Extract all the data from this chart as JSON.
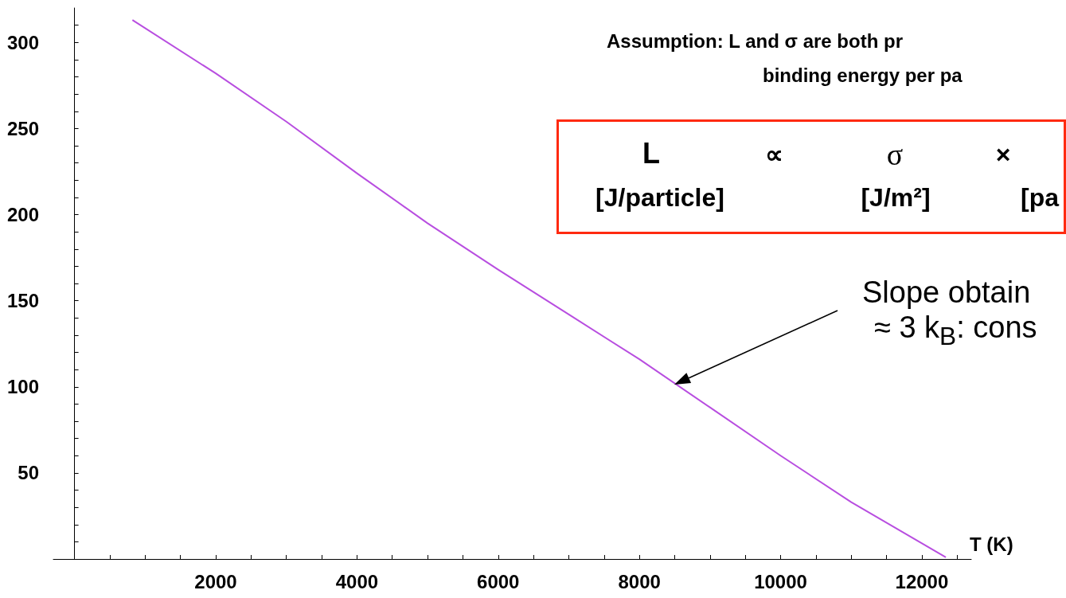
{
  "chart_data": {
    "type": "line",
    "xlabel": "T (K)",
    "x": [
      820,
      2000,
      3000,
      4000,
      5000,
      6000,
      7000,
      8000,
      9000,
      10000,
      11000,
      12340
    ],
    "series": [
      {
        "color": "#b84ee0",
        "values": [
          313,
          282,
          254,
          224,
          195,
          168,
          142,
          116,
          88,
          60,
          33,
          1
        ]
      }
    ],
    "xlim": [
      -300,
      12700
    ],
    "ylim": [
      0,
      320
    ],
    "xticks": [
      {
        "value": 0,
        "label": null
      },
      {
        "value": 500,
        "label": null
      },
      {
        "value": 1000,
        "label": null
      },
      {
        "value": 1500,
        "label": null
      },
      2000,
      {
        "value": 2500,
        "label": null
      },
      {
        "value": 3000,
        "label": null
      },
      {
        "value": 3500,
        "label": null
      },
      4000,
      {
        "value": 4500,
        "label": null
      },
      {
        "value": 5000,
        "label": null
      },
      {
        "value": 5500,
        "label": null
      },
      6000,
      {
        "value": 6500,
        "label": null
      },
      {
        "value": 7000,
        "label": null
      },
      {
        "value": 7500,
        "label": null
      },
      8000,
      {
        "value": 8500,
        "label": null
      },
      {
        "value": 9000,
        "label": null
      },
      {
        "value": 9500,
        "label": null
      },
      10000,
      {
        "value": 10500,
        "label": null
      },
      {
        "value": 11000,
        "label": null
      },
      {
        "value": 11500,
        "label": null
      },
      12000,
      {
        "value": 12500,
        "label": null
      }
    ],
    "yticks": [
      {
        "value": 10,
        "label": null
      },
      {
        "value": 20,
        "label": null
      },
      {
        "value": 30,
        "label": null
      },
      {
        "value": 40,
        "label": null
      },
      50,
      {
        "value": 60,
        "label": null
      },
      {
        "value": 70,
        "label": null
      },
      {
        "value": 80,
        "label": null
      },
      {
        "value": 90,
        "label": null
      },
      100,
      {
        "value": 110,
        "label": null
      },
      {
        "value": 120,
        "label": null
      },
      {
        "value": 130,
        "label": null
      },
      {
        "value": 140,
        "label": null
      },
      150,
      {
        "value": 160,
        "label": null
      },
      {
        "value": 170,
        "label": null
      },
      {
        "value": 180,
        "label": null
      },
      {
        "value": 190,
        "label": null
      },
      200,
      {
        "value": 210,
        "label": null
      },
      {
        "value": 220,
        "label": null
      },
      {
        "value": 230,
        "label": null
      },
      {
        "value": 240,
        "label": null
      },
      250,
      {
        "value": 260,
        "label": null
      },
      {
        "value": 270,
        "label": null
      },
      {
        "value": 280,
        "label": null
      },
      {
        "value": 290,
        "label": null
      },
      300,
      {
        "value": 310,
        "label": null
      }
    ],
    "grid": false,
    "marker": "none",
    "line_style": "solid",
    "annotations": [
      "Assumption: L and σ are both pr",
      "binding energy per pa",
      "L",
      "∝",
      "σ",
      "×",
      "[J/particle]",
      "[J/m²]",
      "[pa",
      "Slope obtain",
      "≈ 3 k$_{B}$: cons"
    ]
  }
}
